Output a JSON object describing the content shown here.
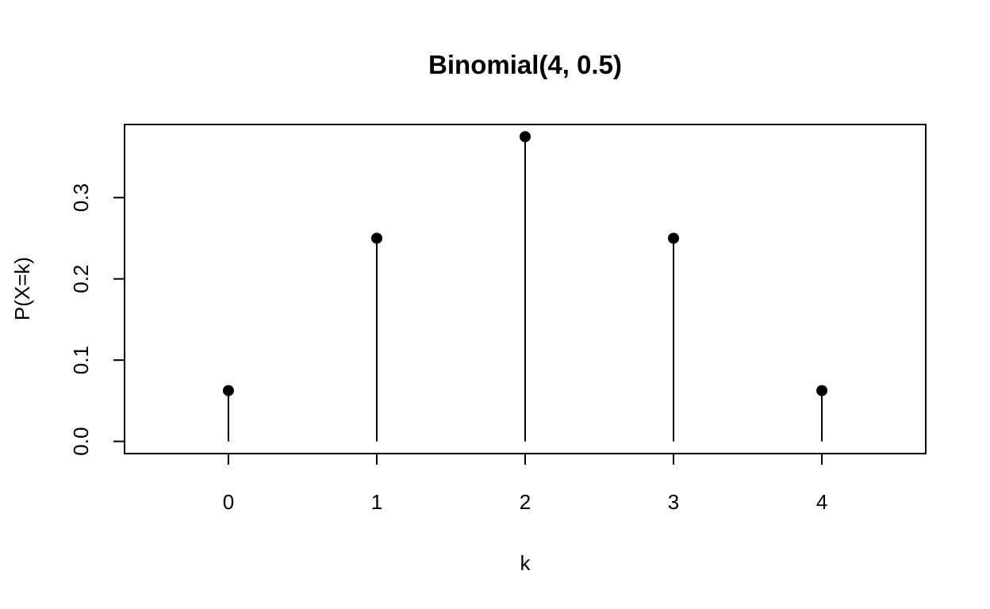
{
  "chart_data": {
    "type": "stem",
    "title": "Binomial(4, 0.5)",
    "xlabel": "k",
    "ylabel": "P(X=k)",
    "x": [
      0,
      1,
      2,
      3,
      4
    ],
    "y": [
      0.0625,
      0.25,
      0.375,
      0.25,
      0.0625
    ],
    "xlim": [
      -0.7,
      4.7
    ],
    "ylim": [
      -0.015,
      0.39
    ],
    "x_ticks": [
      0,
      1,
      2,
      3,
      4
    ],
    "x_tick_labels": [
      "0",
      "1",
      "2",
      "3",
      "4"
    ],
    "y_ticks": [
      0.0,
      0.1,
      0.2,
      0.3
    ],
    "y_tick_labels": [
      "0.0",
      "0.1",
      "0.2",
      "0.3"
    ],
    "grid": false,
    "legend": "none",
    "marker": "filled-circle",
    "color": "#000000"
  }
}
